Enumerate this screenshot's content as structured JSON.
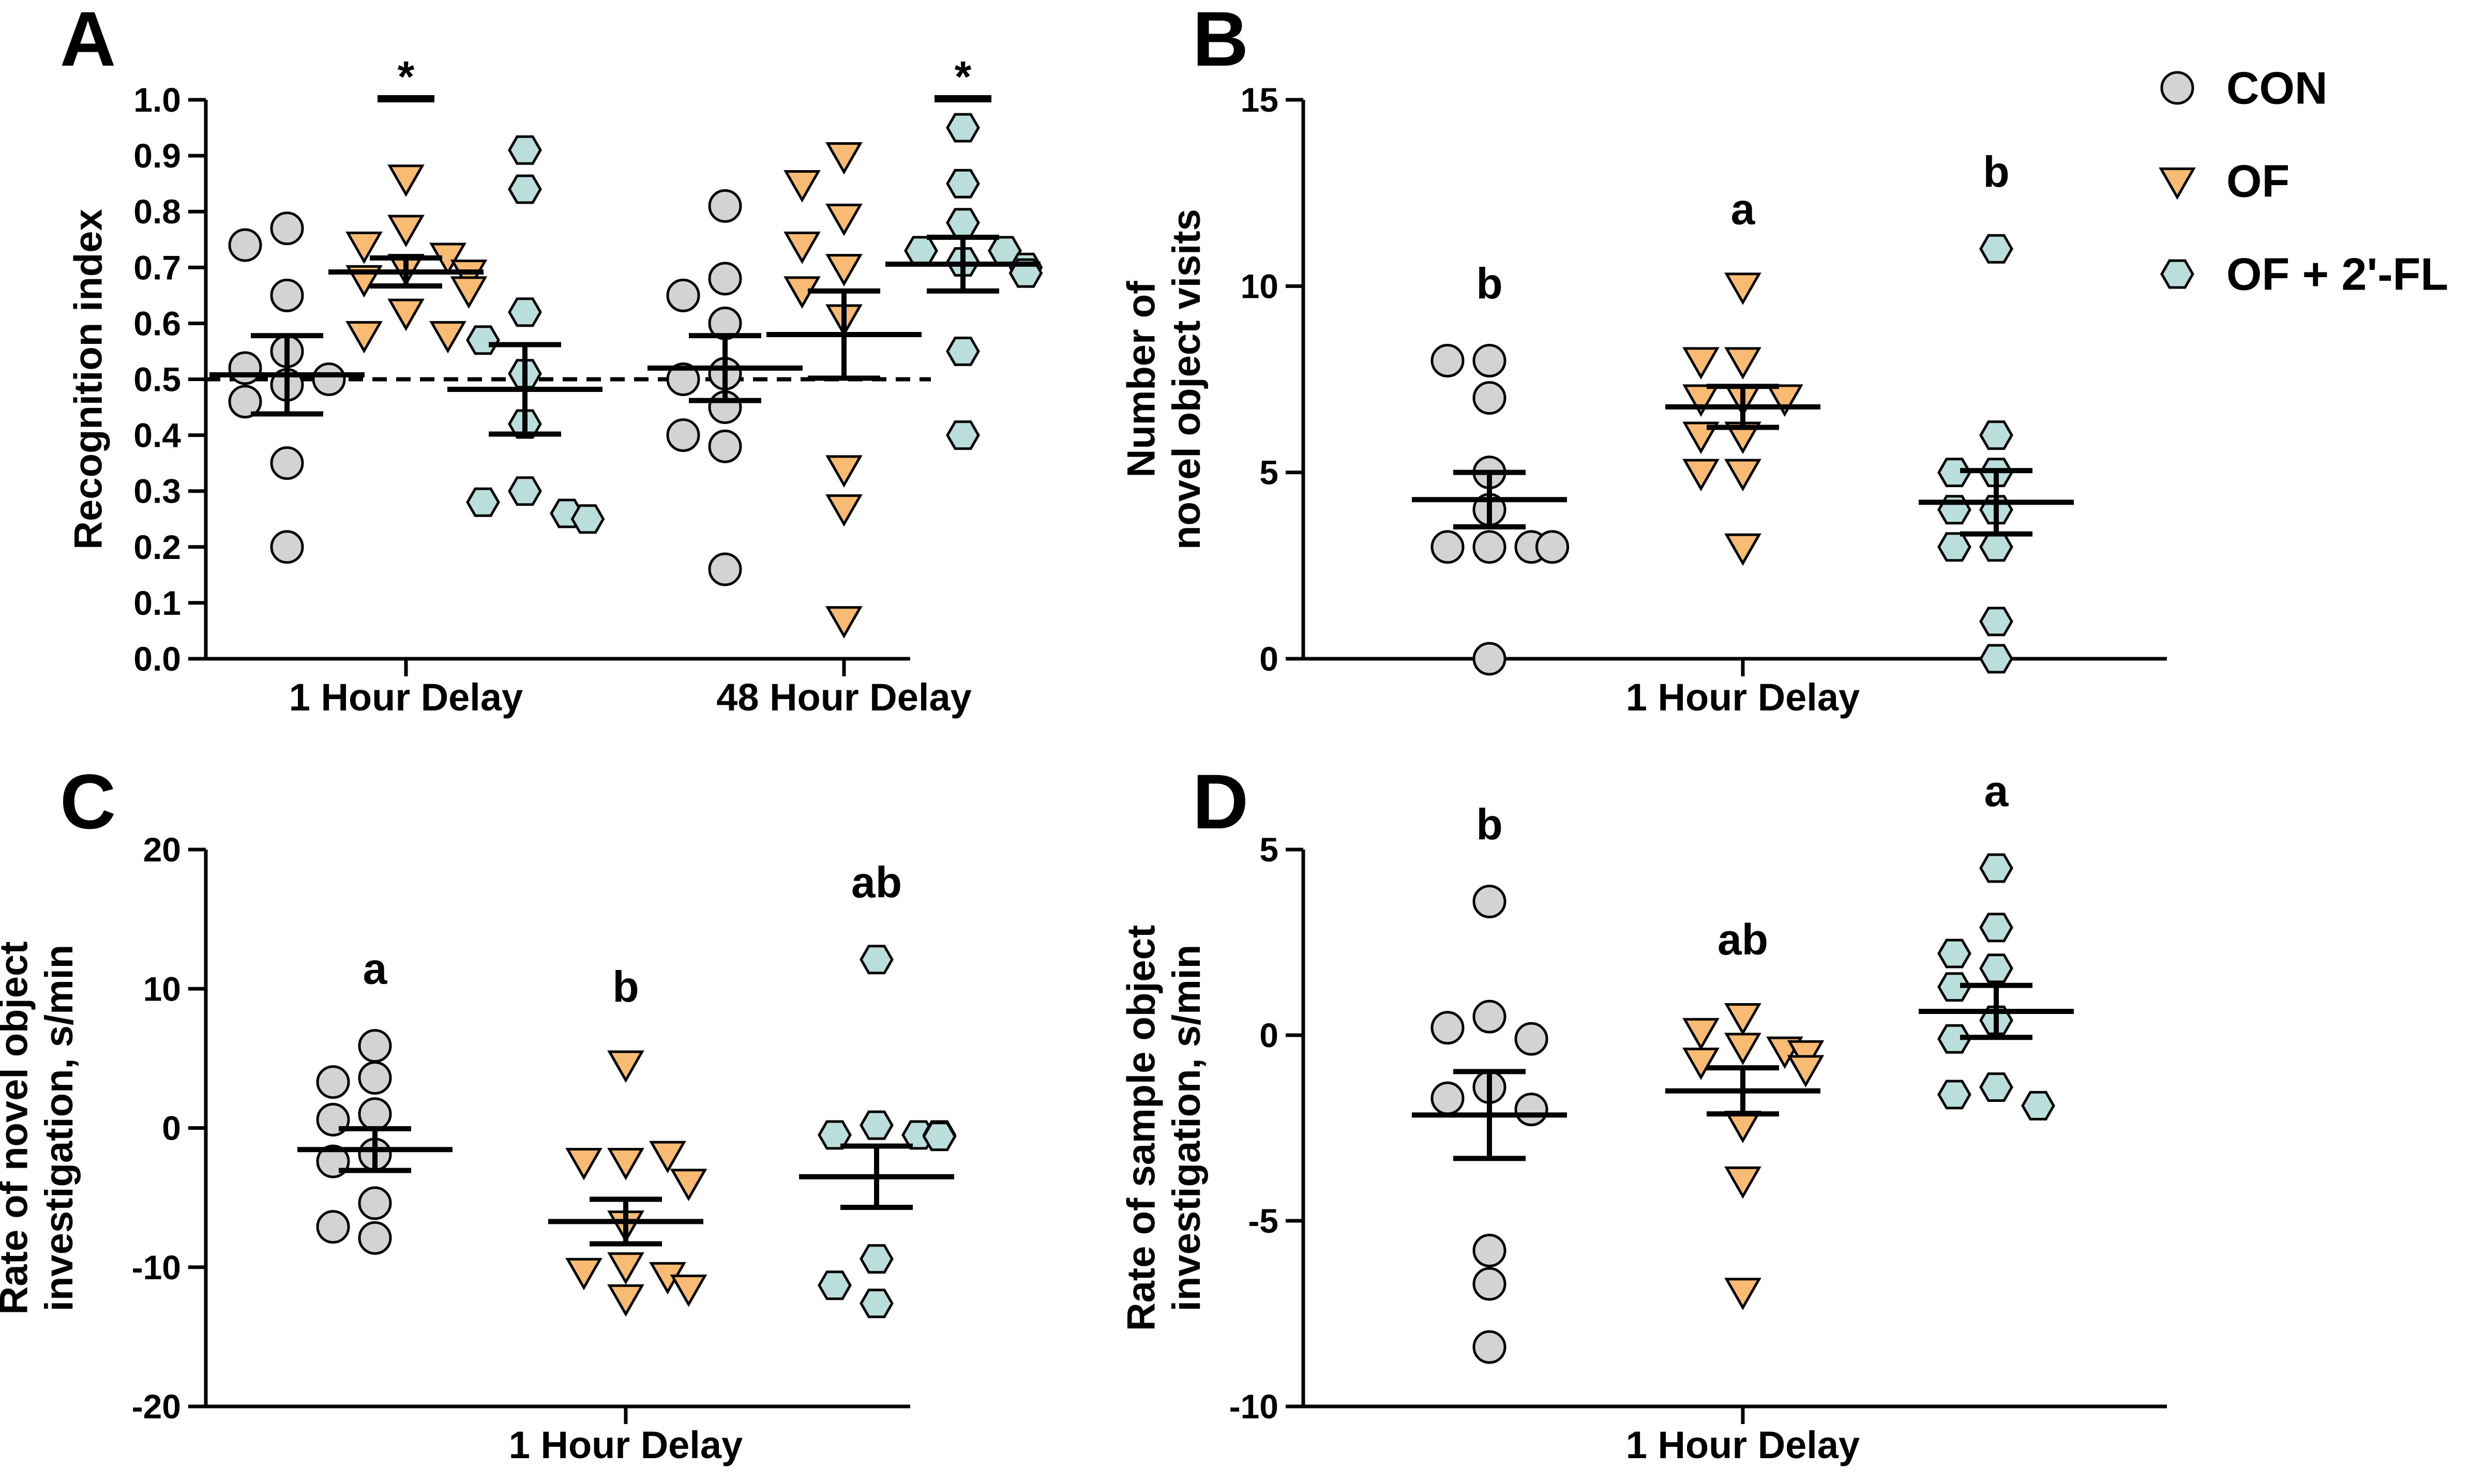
{
  "colors": {
    "CON": "#d3d3d3",
    "OF": "#f9bb74",
    "OF + 2'-FL": "#b9dedc"
  },
  "legend": {
    "items": [
      {
        "name": "CON",
        "label": "CON",
        "marker": "circle"
      },
      {
        "name": "OF",
        "label": "OF",
        "marker": "triangle-down"
      },
      {
        "name": "OF + 2'-FL",
        "label": "OF + 2'-FL",
        "marker": "hexagon"
      }
    ]
  },
  "chart_data": [
    {
      "panel": "A",
      "type": "scatter",
      "ylabel": "Recognition index",
      "ylim": [
        0.0,
        1.0
      ],
      "yticks": [
        0.0,
        0.1,
        0.2,
        0.3,
        0.4,
        0.5,
        0.6,
        0.7,
        0.8,
        0.9,
        1.0
      ],
      "ytick_labels": [
        "0.0",
        "0.1",
        "0.2",
        "0.3",
        "0.4",
        "0.5",
        "0.6",
        "0.7",
        "0.8",
        "0.9",
        "1.0"
      ],
      "reference_line": 0.5,
      "categories": [
        "1 Hour Delay",
        "48 Hour Delay"
      ],
      "series": [
        {
          "name": "CON",
          "category": "1 Hour Delay",
          "values": [
            0.77,
            0.74,
            0.65,
            0.55,
            0.52,
            0.5,
            0.49,
            0.46,
            0.35,
            0.2
          ],
          "mean": 0.508,
          "sem": 0.07,
          "sig": ""
        },
        {
          "name": "OF",
          "category": "1 Hour Delay",
          "values": [
            0.86,
            0.77,
            0.74,
            0.72,
            0.7,
            0.69,
            0.68,
            0.66,
            0.62,
            0.58,
            0.58
          ],
          "mean": 0.692,
          "sem": 0.025,
          "sig": "*"
        },
        {
          "name": "OF + 2'-FL",
          "category": "1 Hour Delay",
          "values": [
            0.91,
            0.84,
            0.62,
            0.57,
            0.51,
            0.42,
            0.3,
            0.28,
            0.26,
            0.25
          ],
          "mean": 0.482,
          "sem": 0.08,
          "sig": ""
        },
        {
          "name": "CON",
          "category": "48 Hour Delay",
          "values": [
            0.81,
            0.68,
            0.65,
            0.6,
            0.51,
            0.5,
            0.45,
            0.4,
            0.38,
            0.16
          ],
          "mean": 0.52,
          "sem": 0.058,
          "sig": ""
        },
        {
          "name": "OF",
          "category": "48 Hour Delay",
          "values": [
            0.9,
            0.85,
            0.79,
            0.74,
            0.7,
            0.66,
            0.61,
            0.34,
            0.27,
            0.07
          ],
          "mean": 0.58,
          "sem": 0.078,
          "sig": ""
        },
        {
          "name": "OF + 2'-FL",
          "category": "48 Hour Delay",
          "values": [
            0.95,
            0.85,
            0.78,
            0.73,
            0.73,
            0.71,
            0.7,
            0.69,
            0.55,
            0.4
          ],
          "mean": 0.706,
          "sem": 0.048,
          "sig": "*"
        }
      ]
    },
    {
      "panel": "B",
      "type": "scatter",
      "ylabel": "Number of\nnovel object visits",
      "ylim": [
        0,
        15
      ],
      "yticks": [
        0,
        5,
        10,
        15
      ],
      "ytick_labels": [
        "0",
        "5",
        "10",
        "15"
      ],
      "categories": [
        "1 Hour Delay"
      ],
      "series": [
        {
          "name": "CON",
          "category": "1 Hour Delay",
          "values": [
            8,
            8,
            7,
            5,
            4,
            3,
            3,
            3,
            3,
            3,
            0
          ],
          "mean": 4.27,
          "sem": 0.73,
          "sig": "b"
        },
        {
          "name": "OF",
          "category": "1 Hour Delay",
          "values": [
            10,
            8,
            8,
            7,
            7,
            7,
            6,
            6,
            5,
            5,
            3
          ],
          "mean": 6.76,
          "sem": 0.55,
          "sig": "a"
        },
        {
          "name": "OF + 2'-FL",
          "category": "1 Hour Delay",
          "values": [
            11,
            6,
            5,
            5,
            4,
            4,
            3,
            3,
            1,
            0
          ],
          "mean": 4.2,
          "sem": 0.85,
          "sig": "b"
        }
      ]
    },
    {
      "panel": "C",
      "type": "scatter",
      "ylabel": "Rate of novel object\ninvestigation, s/min",
      "ylim": [
        -20,
        20
      ],
      "yticks": [
        -20,
        -10,
        0,
        10,
        20
      ],
      "ytick_labels": [
        "-20",
        "-10",
        "0",
        "10",
        "20"
      ],
      "categories": [
        "1 Hour Delay"
      ],
      "series": [
        {
          "name": "CON",
          "category": "1 Hour Delay",
          "values": [
            5.9,
            3.6,
            3.3,
            1.0,
            0.6,
            -1.9,
            -2.4,
            -5.4,
            -7.1,
            -7.9
          ],
          "mean": -1.55,
          "sem": 1.5,
          "sig": "a"
        },
        {
          "name": "OF",
          "category": "1 Hour Delay",
          "values": [
            4.6,
            -2.4,
            -2.4,
            -1.9,
            -3.9,
            -6.9,
            -9.9,
            -10.3,
            -10.6,
            -11.5,
            -12.2
          ],
          "mean": -6.72,
          "sem": 1.6,
          "sig": "b"
        },
        {
          "name": "OF + 2'-FL",
          "category": "1 Hour Delay",
          "values": [
            12.1,
            0.2,
            -0.5,
            -0.5,
            -0.5,
            -0.6,
            -0.6,
            -9.4,
            -11.3,
            -12.6
          ],
          "mean": -3.5,
          "sem": 2.2,
          "sig": "ab"
        }
      ]
    },
    {
      "panel": "D",
      "type": "scatter",
      "ylabel": "Rate of sample object\ninvestigation, s/min",
      "ylim": [
        -10,
        5
      ],
      "yticks": [
        -10,
        -5,
        0,
        5
      ],
      "ytick_labels": [
        "-10",
        "-5",
        "0",
        "5"
      ],
      "categories": [
        "1 Hour Delay"
      ],
      "series": [
        {
          "name": "CON",
          "category": "1 Hour Delay",
          "values": [
            3.6,
            0.5,
            0.2,
            -0.1,
            -1.4,
            -1.7,
            -2.0,
            -5.8,
            -6.7,
            -8.4
          ],
          "mean": -2.15,
          "sem": 1.17,
          "sig": "b"
        },
        {
          "name": "OF",
          "category": "1 Hour Delay",
          "values": [
            0.5,
            0.1,
            -0.3,
            -0.4,
            -0.5,
            -0.7,
            -0.9,
            -2.4,
            -3.9,
            -6.9
          ],
          "mean": -1.5,
          "sem": 0.62,
          "sig": "ab"
        },
        {
          "name": "OF + 2'-FL",
          "category": "1 Hour Delay",
          "values": [
            4.5,
            2.9,
            2.2,
            1.8,
            1.3,
            0.4,
            -0.1,
            -1.4,
            -1.6,
            -1.9
          ],
          "mean": 0.64,
          "sem": 0.7,
          "sig": "a"
        }
      ]
    }
  ]
}
